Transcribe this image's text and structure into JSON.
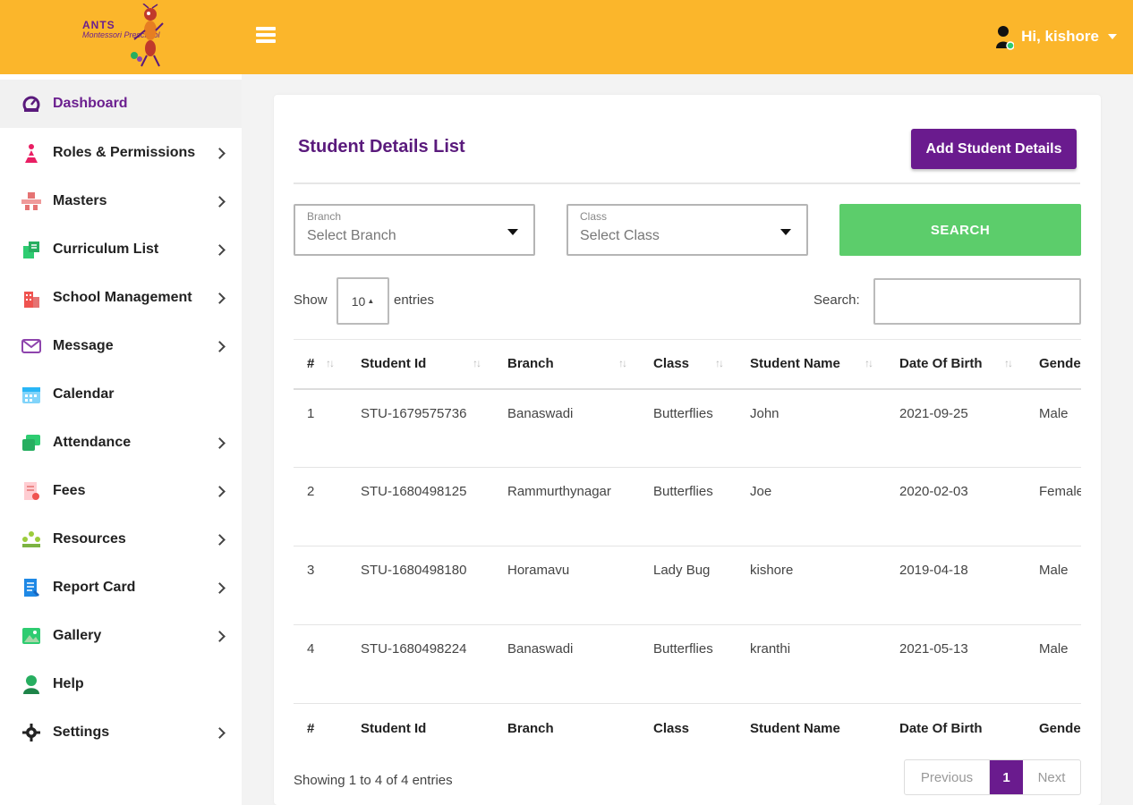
{
  "brand": {
    "name": "ANTS",
    "subtitle": "Montessori Preschool"
  },
  "header": {
    "greeting": "Hi, kishore",
    "accent_color": "#fbb62b"
  },
  "sidebar": {
    "items": [
      {
        "label": "Dashboard",
        "icon": "dashboard-icon"
      },
      {
        "label": "Roles & Permissions",
        "icon": "roles-icon"
      },
      {
        "label": "Masters",
        "icon": "masters-icon"
      },
      {
        "label": "Curriculum List",
        "icon": "curriculum-icon"
      },
      {
        "label": "School Management",
        "icon": "school-icon"
      },
      {
        "label": "Message",
        "icon": "envelope-icon"
      },
      {
        "label": "Calendar",
        "icon": "calendar-icon"
      },
      {
        "label": "Attendance",
        "icon": "attendance-icon"
      },
      {
        "label": "Fees",
        "icon": "fees-icon"
      },
      {
        "label": "Resources",
        "icon": "resources-icon"
      },
      {
        "label": "Report Card",
        "icon": "report-card-icon"
      },
      {
        "label": "Gallery",
        "icon": "gallery-icon"
      },
      {
        "label": "Help",
        "icon": "help-icon"
      },
      {
        "label": "Settings",
        "icon": "gear-icon"
      }
    ]
  },
  "main": {
    "title": "Student Details List",
    "add_button": "Add Student Details",
    "branch": {
      "label": "Branch",
      "value": "Select Branch"
    },
    "class": {
      "label": "Class",
      "value": "Select Class"
    },
    "search_button": "SEARCH",
    "show_label": "Show",
    "entries_label": "entries",
    "page_length": "10",
    "search_label": "Search:",
    "search_value": "",
    "columns": [
      "#",
      "Student Id",
      "Branch",
      "Class",
      "Student Name",
      "Date Of Birth",
      "Gender"
    ],
    "rows": [
      [
        "1",
        "STU-1679575736",
        "Banaswadi",
        "Butterflies",
        "John",
        "2021-09-25",
        "Male"
      ],
      [
        "2",
        "STU-1680498125",
        "Rammurthynagar",
        "Butterflies",
        "Joe",
        "2020-02-03",
        "Female"
      ],
      [
        "3",
        "STU-1680498180",
        "Horamavu",
        "Lady Bug",
        "kishore",
        "2019-04-18",
        "Male"
      ],
      [
        "4",
        "STU-1680498224",
        "Banaswadi",
        "Butterflies",
        "kranthi",
        "2021-05-13",
        "Male"
      ]
    ],
    "info": "Showing 1 to 4 of 4 entries",
    "pagination": {
      "previous": "Previous",
      "current": "1",
      "next": "Next"
    },
    "primary_color": "#6a1b8e",
    "search_color": "#5ccd6b"
  }
}
